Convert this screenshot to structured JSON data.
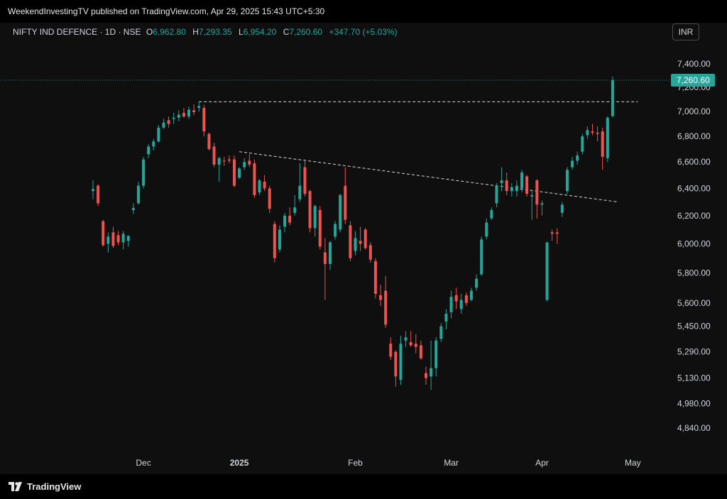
{
  "header": {
    "publisher": "WeekendInvestingTV published on TradingView.com, Apr 29, 2025 15:43 UTC+5:30"
  },
  "legend": {
    "symbol": "NIFTY IND DEFENCE · 1D · NSE",
    "o_label": "O",
    "o_value": "6,962.80",
    "h_label": "H",
    "h_value": "7,293.35",
    "l_label": "L",
    "l_value": "6,954.20",
    "c_label": "C",
    "c_value": "7,260.60",
    "change": "+347.70 (+5.03%)"
  },
  "currency_button": "INR",
  "footer": {
    "brand": "TradingView"
  },
  "colors": {
    "up": "#26a69a",
    "down": "#ef5350",
    "background": "#0f0f0f",
    "price_badge": "#26a69a"
  },
  "chart_data": {
    "type": "candlestick",
    "title": "NIFTY IND DEFENCE · 1D · NSE",
    "y_scale": "log",
    "ylim": [
      4700,
      7650
    ],
    "y_ticks": [
      "7,400.00",
      "7,200.00",
      "7,000.00",
      "6,800.00",
      "6,600.00",
      "6,400.00",
      "6,200.00",
      "6,000.00",
      "5,800.00",
      "5,600.00",
      "5,450.00",
      "5,290.00",
      "5,130.00",
      "4,980.00",
      "4,840.00"
    ],
    "y_tick_values": [
      7400,
      7200,
      7000,
      6800,
      6600,
      6400,
      6200,
      6000,
      5800,
      5600,
      5450,
      5290,
      5130,
      4980,
      4840
    ],
    "x_ticks": [
      {
        "label": "Dec",
        "index": 10
      },
      {
        "label": "2025",
        "index": 29
      },
      {
        "label": "Feb",
        "index": 52
      },
      {
        "label": "Mar",
        "index": 71
      },
      {
        "label": "Apr",
        "index": 89
      },
      {
        "label": "May",
        "index": 107
      }
    ],
    "last_price_label": "7,260.60",
    "last_price": 7260.6,
    "candles": [
      {
        "o": 6380,
        "h": 6460,
        "l": 6320,
        "c": 6395
      },
      {
        "o": 6420,
        "h": 6430,
        "l": 6270,
        "c": 6290
      },
      {
        "o": 6160,
        "h": 6170,
        "l": 5980,
        "c": 5990
      },
      {
        "o": 6000,
        "h": 6080,
        "l": 5940,
        "c": 6050
      },
      {
        "o": 6080,
        "h": 6120,
        "l": 5970,
        "c": 5985
      },
      {
        "o": 6060,
        "h": 6090,
        "l": 5990,
        "c": 6010
      },
      {
        "o": 6010,
        "h": 6090,
        "l": 5960,
        "c": 6070
      },
      {
        "o": 6020,
        "h": 6060,
        "l": 5980,
        "c": 6055
      },
      {
        "o": 6240,
        "h": 6290,
        "l": 6210,
        "c": 6255
      },
      {
        "o": 6290,
        "h": 6450,
        "l": 6280,
        "c": 6420
      },
      {
        "o": 6420,
        "h": 6640,
        "l": 6400,
        "c": 6620
      },
      {
        "o": 6660,
        "h": 6740,
        "l": 6630,
        "c": 6720
      },
      {
        "o": 6720,
        "h": 6780,
        "l": 6690,
        "c": 6760
      },
      {
        "o": 6760,
        "h": 6890,
        "l": 6750,
        "c": 6870
      },
      {
        "o": 6870,
        "h": 6940,
        "l": 6860,
        "c": 6910
      },
      {
        "o": 6930,
        "h": 6960,
        "l": 6870,
        "c": 6900
      },
      {
        "o": 6940,
        "h": 6990,
        "l": 6900,
        "c": 6950
      },
      {
        "o": 6950,
        "h": 7010,
        "l": 6920,
        "c": 6975
      },
      {
        "o": 6990,
        "h": 7030,
        "l": 6950,
        "c": 6960
      },
      {
        "o": 6960,
        "h": 7040,
        "l": 6940,
        "c": 7015
      },
      {
        "o": 7010,
        "h": 7060,
        "l": 6970,
        "c": 6995
      },
      {
        "o": 7030,
        "h": 7080,
        "l": 7000,
        "c": 7045
      },
      {
        "o": 7030,
        "h": 7055,
        "l": 6800,
        "c": 6840
      },
      {
        "o": 6820,
        "h": 6830,
        "l": 6690,
        "c": 6700
      },
      {
        "o": 6720,
        "h": 6750,
        "l": 6560,
        "c": 6580
      },
      {
        "o": 6580,
        "h": 6640,
        "l": 6450,
        "c": 6630
      },
      {
        "o": 6610,
        "h": 6640,
        "l": 6570,
        "c": 6605
      },
      {
        "o": 6620,
        "h": 6650,
        "l": 6590,
        "c": 6610
      },
      {
        "o": 6620,
        "h": 6650,
        "l": 6410,
        "c": 6420
      },
      {
        "o": 6480,
        "h": 6560,
        "l": 6470,
        "c": 6550
      },
      {
        "o": 6560,
        "h": 6630,
        "l": 6540,
        "c": 6600
      },
      {
        "o": 6610,
        "h": 6660,
        "l": 6560,
        "c": 6580
      },
      {
        "o": 6590,
        "h": 6620,
        "l": 6330,
        "c": 6350
      },
      {
        "o": 6370,
        "h": 6470,
        "l": 6350,
        "c": 6460
      },
      {
        "o": 6450,
        "h": 6500,
        "l": 6380,
        "c": 6400
      },
      {
        "o": 6400,
        "h": 6420,
        "l": 6220,
        "c": 6250
      },
      {
        "o": 6140,
        "h": 6160,
        "l": 5870,
        "c": 5900
      },
      {
        "o": 5960,
        "h": 6130,
        "l": 5940,
        "c": 6100
      },
      {
        "o": 6120,
        "h": 6220,
        "l": 6080,
        "c": 6200
      },
      {
        "o": 6200,
        "h": 6260,
        "l": 6130,
        "c": 6150
      },
      {
        "o": 6220,
        "h": 6350,
        "l": 6200,
        "c": 6260
      },
      {
        "o": 6320,
        "h": 6590,
        "l": 6300,
        "c": 6420
      },
      {
        "o": 6560,
        "h": 6620,
        "l": 6340,
        "c": 6360
      },
      {
        "o": 6380,
        "h": 6390,
        "l": 6080,
        "c": 6110
      },
      {
        "o": 6110,
        "h": 6280,
        "l": 6050,
        "c": 6270
      },
      {
        "o": 6240,
        "h": 6270,
        "l": 5960,
        "c": 5980
      },
      {
        "o": 5940,
        "h": 6040,
        "l": 5620,
        "c": 5860
      },
      {
        "o": 5860,
        "h": 6020,
        "l": 5820,
        "c": 6010
      },
      {
        "o": 6050,
        "h": 6160,
        "l": 6030,
        "c": 6140
      },
      {
        "o": 6100,
        "h": 6360,
        "l": 6080,
        "c": 6350
      },
      {
        "o": 6420,
        "h": 6560,
        "l": 6140,
        "c": 6170
      },
      {
        "o": 6130,
        "h": 6160,
        "l": 5880,
        "c": 5900
      },
      {
        "o": 5950,
        "h": 6090,
        "l": 5920,
        "c": 6040
      },
      {
        "o": 6020,
        "h": 6120,
        "l": 5950,
        "c": 6000
      },
      {
        "o": 6100,
        "h": 6110,
        "l": 5960,
        "c": 5970
      },
      {
        "o": 5990,
        "h": 6010,
        "l": 5870,
        "c": 5890
      },
      {
        "o": 5880,
        "h": 5900,
        "l": 5630,
        "c": 5660
      },
      {
        "o": 5650,
        "h": 5720,
        "l": 5580,
        "c": 5620
      },
      {
        "o": 5680,
        "h": 5780,
        "l": 5440,
        "c": 5460
      },
      {
        "o": 5340,
        "h": 5380,
        "l": 5240,
        "c": 5260
      },
      {
        "o": 5290,
        "h": 5300,
        "l": 5080,
        "c": 5140
      },
      {
        "o": 5120,
        "h": 5390,
        "l": 5090,
        "c": 5340
      },
      {
        "o": 5360,
        "h": 5420,
        "l": 5320,
        "c": 5380
      },
      {
        "o": 5350,
        "h": 5420,
        "l": 5320,
        "c": 5330
      },
      {
        "o": 5340,
        "h": 5400,
        "l": 5280,
        "c": 5320
      },
      {
        "o": 5330,
        "h": 5360,
        "l": 5240,
        "c": 5250
      },
      {
        "o": 5160,
        "h": 5200,
        "l": 5090,
        "c": 5130
      },
      {
        "o": 5140,
        "h": 5360,
        "l": 5060,
        "c": 5190
      },
      {
        "o": 5190,
        "h": 5380,
        "l": 5140,
        "c": 5360
      },
      {
        "o": 5370,
        "h": 5470,
        "l": 5350,
        "c": 5450
      },
      {
        "o": 5480,
        "h": 5560,
        "l": 5430,
        "c": 5530
      },
      {
        "o": 5540,
        "h": 5680,
        "l": 5500,
        "c": 5640
      },
      {
        "o": 5650,
        "h": 5700,
        "l": 5560,
        "c": 5610
      },
      {
        "o": 5560,
        "h": 5660,
        "l": 5530,
        "c": 5620
      },
      {
        "o": 5650,
        "h": 5670,
        "l": 5580,
        "c": 5600
      },
      {
        "o": 5620,
        "h": 5700,
        "l": 5610,
        "c": 5680
      },
      {
        "o": 5700,
        "h": 5790,
        "l": 5680,
        "c": 5760
      },
      {
        "o": 5790,
        "h": 6050,
        "l": 5780,
        "c": 6030
      },
      {
        "o": 6050,
        "h": 6180,
        "l": 6030,
        "c": 6150
      },
      {
        "o": 6180,
        "h": 6260,
        "l": 6170,
        "c": 6240
      },
      {
        "o": 6290,
        "h": 6440,
        "l": 6260,
        "c": 6420
      },
      {
        "o": 6440,
        "h": 6560,
        "l": 6380,
        "c": 6460
      },
      {
        "o": 6460,
        "h": 6520,
        "l": 6350,
        "c": 6380
      },
      {
        "o": 6380,
        "h": 6440,
        "l": 6340,
        "c": 6400
      },
      {
        "o": 6380,
        "h": 6460,
        "l": 6340,
        "c": 6420
      },
      {
        "o": 6400,
        "h": 6540,
        "l": 6370,
        "c": 6520
      },
      {
        "o": 6490,
        "h": 6500,
        "l": 6340,
        "c": 6360
      },
      {
        "o": 6340,
        "h": 6390,
        "l": 6170,
        "c": 6350
      },
      {
        "o": 6460,
        "h": 6470,
        "l": 6180,
        "c": 6280
      },
      {
        "o": 6280,
        "h": 6310,
        "l": 6200,
        "c": 6290
      },
      {
        "o": 5620,
        "h": 6010,
        "l": 5610,
        "c": 6010
      },
      {
        "o": 6080,
        "h": 6100,
        "l": 6020,
        "c": 6070
      },
      {
        "o": 6080,
        "h": 6110,
        "l": 6000,
        "c": 6070
      },
      {
        "o": 6220,
        "h": 6300,
        "l": 6190,
        "c": 6280
      },
      {
        "o": 6380,
        "h": 6560,
        "l": 6360,
        "c": 6540
      },
      {
        "o": 6560,
        "h": 6640,
        "l": 6540,
        "c": 6610
      },
      {
        "o": 6610,
        "h": 6680,
        "l": 6580,
        "c": 6650
      },
      {
        "o": 6680,
        "h": 6820,
        "l": 6660,
        "c": 6800
      },
      {
        "o": 6810,
        "h": 6880,
        "l": 6780,
        "c": 6850
      },
      {
        "o": 6840,
        "h": 6900,
        "l": 6810,
        "c": 6830
      },
      {
        "o": 6830,
        "h": 6880,
        "l": 6760,
        "c": 6820
      },
      {
        "o": 6840,
        "h": 6870,
        "l": 6540,
        "c": 6640
      },
      {
        "o": 6630,
        "h": 6960,
        "l": 6600,
        "c": 6950
      },
      {
        "o": 6962.8,
        "h": 7293.35,
        "l": 6954.2,
        "c": 7260.6
      }
    ],
    "annotations": [
      {
        "type": "horizontal-dashed",
        "from_index": 21,
        "to_index": 108,
        "price": 7080
      },
      {
        "type": "trendline-dashed",
        "from_index": 29,
        "from_price": 6680,
        "to_index": 104,
        "to_price": 6300
      }
    ],
    "grid": false,
    "legend_position": "top-left"
  }
}
